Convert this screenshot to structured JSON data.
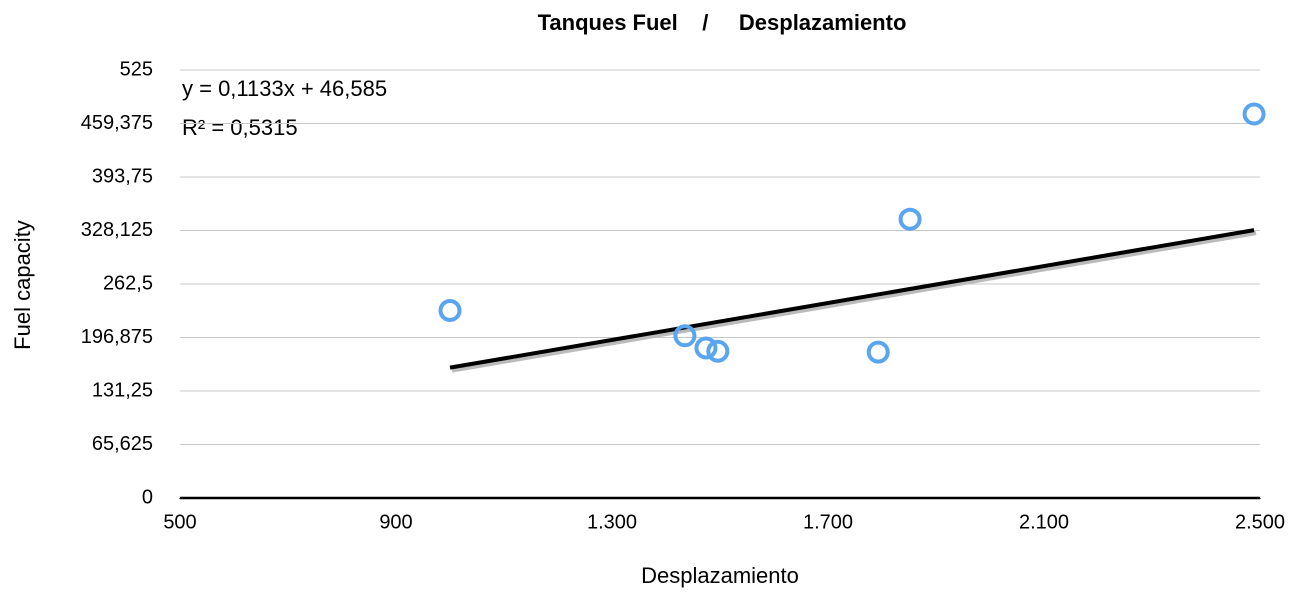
{
  "chart_data": {
    "type": "scatter",
    "title": "Tanques Fuel    /     Desplazamiento",
    "x_label": "Desplazamiento",
    "y_label": "Fuel capacity",
    "x": [
      1000,
      1435,
      1474,
      1496,
      1793,
      1852,
      2489
    ],
    "values": [
      230,
      199,
      184,
      180,
      179,
      342,
      471
    ],
    "color": "#5aa5f0",
    "xlim": [
      500,
      2500
    ],
    "xticks": [
      500,
      900,
      {
        "value": 1300,
        "label": "1.300"
      },
      {
        "value": 1700,
        "label": "1.700"
      },
      {
        "value": 2100,
        "label": "2.100"
      },
      {
        "value": 2500,
        "label": "2.500"
      }
    ],
    "ylim": [
      0,
      525
    ],
    "yticks": [
      0,
      {
        "value": 65.625,
        "label": "65,625"
      },
      {
        "value": 131.25,
        "label": "131,25"
      },
      {
        "value": 196.875,
        "label": "196,875"
      },
      {
        "value": 262.5,
        "label": "262,5"
      },
      {
        "value": 328.125,
        "label": "328,125"
      },
      {
        "value": 393.75,
        "label": "393,75"
      },
      {
        "value": 459.375,
        "label": "459,375"
      },
      525
    ],
    "grid": true,
    "trendline": {
      "equation": "y = 0,1133x + 46,585",
      "r_squared": "R² = 0,5315",
      "slope": 0.1133,
      "intercept": 46.585
    }
  }
}
